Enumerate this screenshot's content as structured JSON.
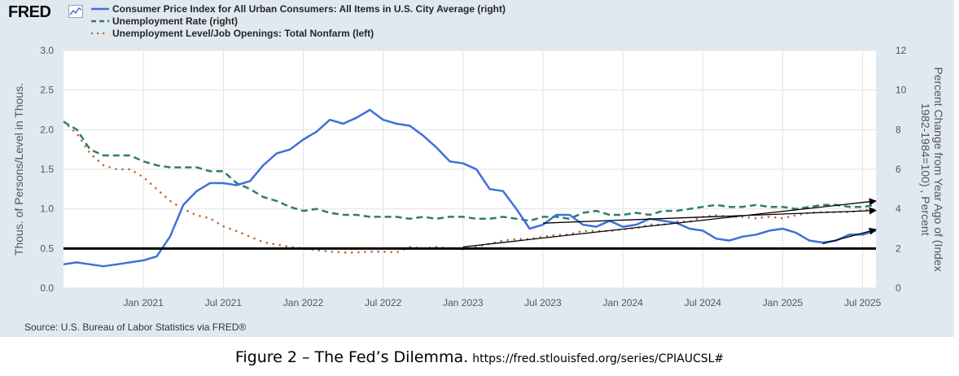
{
  "header": {
    "logo": "FRED",
    "legend": [
      {
        "label": "Consumer Price Index for All Urban Consumers: All Items in U.S. City Average (right)",
        "style": "solid",
        "color": "#4070d8"
      },
      {
        "label": "Unemployment Rate (right)",
        "style": "dashed",
        "color": "#2e7d6a"
      },
      {
        "label": "Unemployment Level/Job Openings: Total Nonfarm (left)",
        "style": "dotted",
        "color": "#b86b3a"
      }
    ]
  },
  "source": "Source: U.S. Bureau of Labor Statistics via FRED®",
  "caption": {
    "main": "Figure 2 – The Fed’s Dilemma.",
    "url": "https://fred.stlouisfed.org/series/CPIAUCSL#"
  },
  "chart_data": {
    "type": "line",
    "y_left": {
      "label": "Thous. of Persons/Level in Thous.",
      "ylim": [
        0,
        3
      ],
      "ticks": [
        "0.0",
        "0.5",
        "1.0",
        "1.5",
        "2.0",
        "2.5",
        "3.0"
      ]
    },
    "y_right": {
      "label": "Percent Change from Year Ago of (Index 1982-1984=100) , Percent",
      "ylim": [
        0,
        12
      ],
      "ticks": [
        "0",
        "2",
        "4",
        "6",
        "8",
        "10",
        "12"
      ]
    },
    "x_ticks": [
      {
        "label": "Jan 2021",
        "date": "2021-01"
      },
      {
        "label": "Jul 2021",
        "date": "2021-07"
      },
      {
        "label": "Jan 2022",
        "date": "2022-01"
      },
      {
        "label": "Jul 2022",
        "date": "2022-07"
      },
      {
        "label": "Jan 2023",
        "date": "2023-01"
      },
      {
        "label": "Jul 2023",
        "date": "2023-07"
      },
      {
        "label": "Jan 2024",
        "date": "2024-01"
      },
      {
        "label": "Jul 2024",
        "date": "2024-07"
      },
      {
        "label": "Jan 2025",
        "date": "2025-01"
      },
      {
        "label": "Jul 2025",
        "date": "2025-07"
      }
    ],
    "x_range": [
      "2020-07",
      "2025-08"
    ],
    "grid": true,
    "series": [
      {
        "name": "Consumer Price Index for All Urban Consumers: All Items in U.S. City Average (right)",
        "axis": "right",
        "color": "#4070d8",
        "style": "solid",
        "x": [
          "2020-07",
          "2020-08",
          "2020-09",
          "2020-10",
          "2020-11",
          "2020-12",
          "2021-01",
          "2021-02",
          "2021-03",
          "2021-04",
          "2021-05",
          "2021-06",
          "2021-07",
          "2021-08",
          "2021-09",
          "2021-10",
          "2021-11",
          "2021-12",
          "2022-01",
          "2022-02",
          "2022-03",
          "2022-04",
          "2022-05",
          "2022-06",
          "2022-07",
          "2022-08",
          "2022-09",
          "2022-10",
          "2022-11",
          "2022-12",
          "2023-01",
          "2023-02",
          "2023-03",
          "2023-04",
          "2023-05",
          "2023-06",
          "2023-07",
          "2023-08",
          "2023-09",
          "2023-10",
          "2023-11",
          "2023-12",
          "2024-01",
          "2024-02",
          "2024-03",
          "2024-04",
          "2024-05",
          "2024-06",
          "2024-07",
          "2024-08",
          "2024-09",
          "2024-10",
          "2024-11",
          "2024-12",
          "2025-01",
          "2025-02",
          "2025-03",
          "2025-04",
          "2025-05",
          "2025-06",
          "2025-07",
          "2025-08"
        ],
        "values": [
          1.2,
          1.3,
          1.2,
          1.1,
          1.2,
          1.3,
          1.4,
          1.6,
          2.6,
          4.2,
          4.9,
          5.3,
          5.3,
          5.2,
          5.4,
          6.2,
          6.8,
          7.0,
          7.5,
          7.9,
          8.5,
          8.3,
          8.6,
          9.0,
          8.5,
          8.3,
          8.2,
          7.7,
          7.1,
          6.4,
          6.3,
          6.0,
          5.0,
          4.9,
          4.0,
          3.0,
          3.2,
          3.7,
          3.7,
          3.2,
          3.1,
          3.4,
          3.1,
          3.2,
          3.5,
          3.4,
          3.3,
          3.0,
          2.9,
          2.5,
          2.4,
          2.6,
          2.7,
          2.9,
          3.0,
          2.8,
          2.4,
          2.3,
          2.4,
          2.7,
          2.7,
          2.9
        ]
      },
      {
        "name": "Unemployment Rate (right)",
        "axis": "right",
        "color": "#2e7d6a",
        "style": "dashed",
        "x": [
          "2020-07",
          "2020-08",
          "2020-09",
          "2020-10",
          "2020-11",
          "2020-12",
          "2021-01",
          "2021-02",
          "2021-03",
          "2021-04",
          "2021-05",
          "2021-06",
          "2021-07",
          "2021-08",
          "2021-09",
          "2021-10",
          "2021-11",
          "2021-12",
          "2022-01",
          "2022-02",
          "2022-03",
          "2022-04",
          "2022-05",
          "2022-06",
          "2022-07",
          "2022-08",
          "2022-09",
          "2022-10",
          "2022-11",
          "2022-12",
          "2023-01",
          "2023-02",
          "2023-03",
          "2023-04",
          "2023-05",
          "2023-06",
          "2023-07",
          "2023-08",
          "2023-09",
          "2023-10",
          "2023-11",
          "2023-12",
          "2024-01",
          "2024-02",
          "2024-03",
          "2024-04",
          "2024-05",
          "2024-06",
          "2024-07",
          "2024-08",
          "2024-09",
          "2024-10",
          "2024-11",
          "2024-12",
          "2025-01",
          "2025-02",
          "2025-03",
          "2025-04",
          "2025-05",
          "2025-06",
          "2025-07",
          "2025-08"
        ],
        "values": [
          8.4,
          8.0,
          7.0,
          6.7,
          6.7,
          6.7,
          6.4,
          6.2,
          6.1,
          6.1,
          6.1,
          5.9,
          5.9,
          5.3,
          5.0,
          4.6,
          4.4,
          4.1,
          3.9,
          4.0,
          3.8,
          3.7,
          3.7,
          3.6,
          3.6,
          3.6,
          3.5,
          3.6,
          3.5,
          3.6,
          3.6,
          3.5,
          3.5,
          3.6,
          3.5,
          3.4,
          3.6,
          3.6,
          3.5,
          3.8,
          3.9,
          3.7,
          3.7,
          3.8,
          3.7,
          3.9,
          3.9,
          4.0,
          4.1,
          4.2,
          4.1,
          4.1,
          4.2,
          4.1,
          4.1,
          4.0,
          4.1,
          4.2,
          4.2,
          4.1,
          4.1,
          4.2
        ]
      },
      {
        "name": "Unemployment Level/Job Openings: Total Nonfarm (left)",
        "axis": "left",
        "color": "#b86b3a",
        "style": "dotted",
        "x": [
          "2020-07",
          "2020-08",
          "2020-09",
          "2020-10",
          "2020-11",
          "2020-12",
          "2021-01",
          "2021-02",
          "2021-03",
          "2021-04",
          "2021-05",
          "2021-06",
          "2021-07",
          "2021-08",
          "2021-09",
          "2021-10",
          "2021-11",
          "2021-12",
          "2022-01",
          "2022-02",
          "2022-03",
          "2022-04",
          "2022-05",
          "2022-06",
          "2022-07",
          "2022-08",
          "2022-09",
          "2022-10",
          "2022-11",
          "2022-12",
          "2023-01",
          "2023-02",
          "2023-03",
          "2023-04",
          "2023-05",
          "2023-06",
          "2023-07",
          "2023-08",
          "2023-09",
          "2023-10",
          "2023-11",
          "2023-12",
          "2024-01",
          "2024-02",
          "2024-03",
          "2024-04",
          "2024-05",
          "2024-06",
          "2024-07",
          "2024-08",
          "2024-09",
          "2024-10",
          "2024-11",
          "2024-12",
          "2025-01",
          "2025-02",
          "2025-03",
          "2025-04",
          "2025-05",
          "2025-06",
          "2025-07",
          "2025-08"
        ],
        "values": [
          2.1,
          1.95,
          1.7,
          1.55,
          1.5,
          1.5,
          1.4,
          1.25,
          1.1,
          1.0,
          0.92,
          0.88,
          0.78,
          0.72,
          0.65,
          0.58,
          0.55,
          0.52,
          0.5,
          0.48,
          0.46,
          0.45,
          0.45,
          0.46,
          0.46,
          0.45,
          0.52,
          0.5,
          0.52,
          0.5,
          0.49,
          0.52,
          0.56,
          0.6,
          0.62,
          0.62,
          0.65,
          0.67,
          0.68,
          0.72,
          0.72,
          0.72,
          0.74,
          0.76,
          0.8,
          0.8,
          0.84,
          0.84,
          0.9,
          0.92,
          0.9,
          0.9,
          0.88,
          0.9,
          0.88,
          0.92,
          0.95,
          0.96,
          0.96,
          0.96,
          0.98,
          1.0
        ]
      }
    ],
    "annotations": [
      {
        "type": "hline",
        "axis": "left",
        "y": 0.5,
        "color": "#000000"
      },
      {
        "type": "arrow",
        "axis": "left",
        "from": [
          "2023-01",
          0.52
        ],
        "to": [
          "2025-08",
          1.1
        ]
      },
      {
        "type": "arrow",
        "axis": "left",
        "from": [
          "2023-07",
          0.82
        ],
        "to": [
          "2025-08",
          0.98
        ]
      },
      {
        "type": "arrow",
        "axis": "left",
        "from": [
          "2025-04",
          0.56
        ],
        "to": [
          "2025-08",
          0.74
        ]
      }
    ]
  }
}
